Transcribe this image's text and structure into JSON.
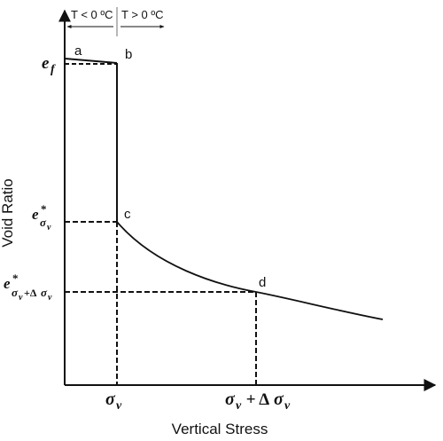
{
  "axes": {
    "x_label": "Vertical Stress",
    "y_label": "Void Ratio"
  },
  "temperature_labels": {
    "left": "T < 0 ºC",
    "right": "T > 0 ºC"
  },
  "points": {
    "a": "a",
    "b": "b",
    "c": "c",
    "d": "d"
  },
  "y_ticks": {
    "ef_base": "e",
    "ef_sub": "f",
    "es_base": "e",
    "es_sub": "σ",
    "es_subsub": "v",
    "es_sup": "*",
    "esd_base": "e",
    "esd_sup": "*",
    "esd_sub_1": "σ",
    "esd_sub_1v": "v",
    "esd_plus": "+Δ",
    "esd_sub_2": "σ",
    "esd_sub_2v": "v"
  },
  "x_ticks": {
    "sigma_base": "σ",
    "sigma_sub": "v",
    "sum_sigma": "σ",
    "sum_sub1": "v",
    "sum_plus": " + Δ",
    "sum_sigma2": "σ",
    "sum_sub2": "v"
  },
  "colors": {
    "line": "#111111",
    "background": "#ffffff"
  }
}
